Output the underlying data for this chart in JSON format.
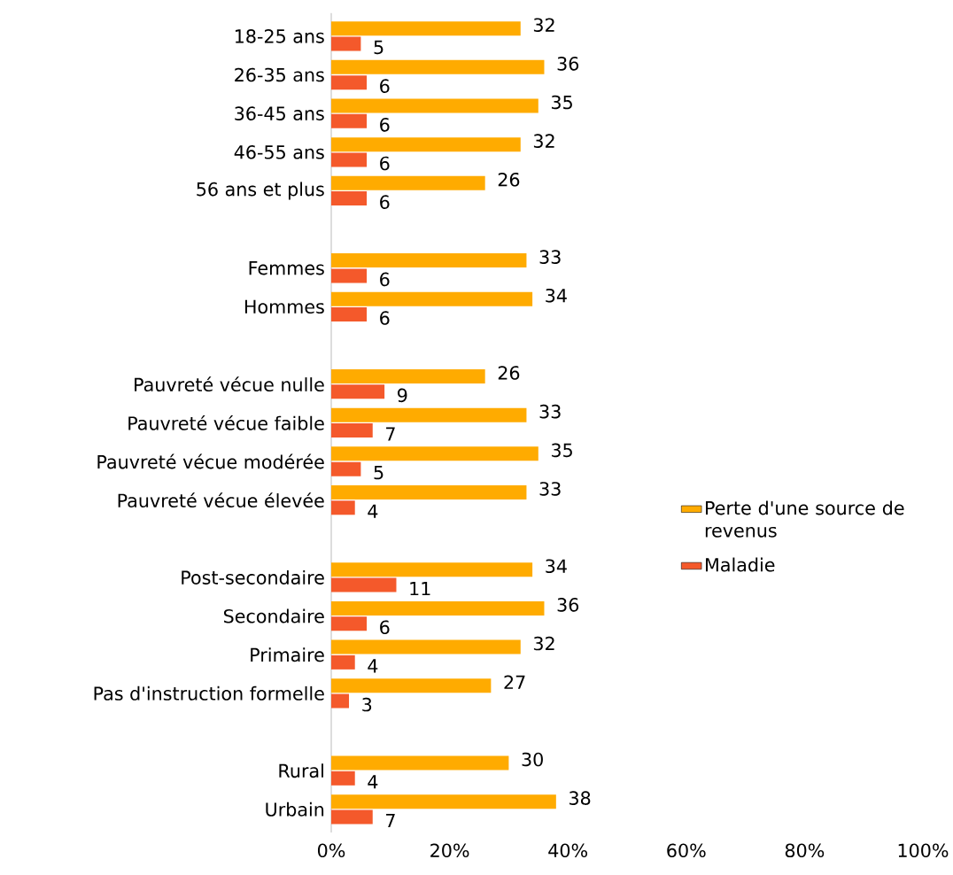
{
  "chart_data": {
    "type": "bar",
    "orientation": "horizontal",
    "categories": [
      "18-25 ans",
      "26-35 ans",
      "36-45 ans",
      "46-55 ans",
      "56 ans et plus",
      null,
      "Femmes",
      "Hommes",
      null,
      "Pauvreté vécue nulle",
      "Pauvreté vécue faible",
      "Pauvreté vécue modérée",
      "Pauvreté vécue élevée",
      null,
      "Post-secondaire",
      "Secondaire",
      "Primaire",
      "Pas d'instruction formelle",
      null,
      "Rural",
      "Urbain"
    ],
    "series": [
      {
        "name": "Perte d'une source de revenus",
        "color": "#ffab00",
        "values": [
          32,
          36,
          35,
          32,
          26,
          null,
          33,
          34,
          null,
          26,
          33,
          35,
          33,
          null,
          34,
          36,
          32,
          27,
          null,
          30,
          38
        ]
      },
      {
        "name": "Maladie",
        "color": "#f4592b",
        "values": [
          5,
          6,
          6,
          6,
          6,
          null,
          6,
          6,
          null,
          9,
          7,
          5,
          4,
          null,
          11,
          6,
          4,
          3,
          null,
          4,
          7
        ]
      }
    ],
    "xlim": [
      0,
      100
    ],
    "xticks": [
      {
        "value": 0,
        "label": "0%"
      },
      {
        "value": 20,
        "label": "20%"
      },
      {
        "value": 40,
        "label": "40%"
      },
      {
        "value": 60,
        "label": "60%"
      },
      {
        "value": 80,
        "label": "80%"
      },
      {
        "value": 100,
        "label": "100%"
      }
    ],
    "data_labels": true,
    "legend": "right",
    "grid": false
  }
}
